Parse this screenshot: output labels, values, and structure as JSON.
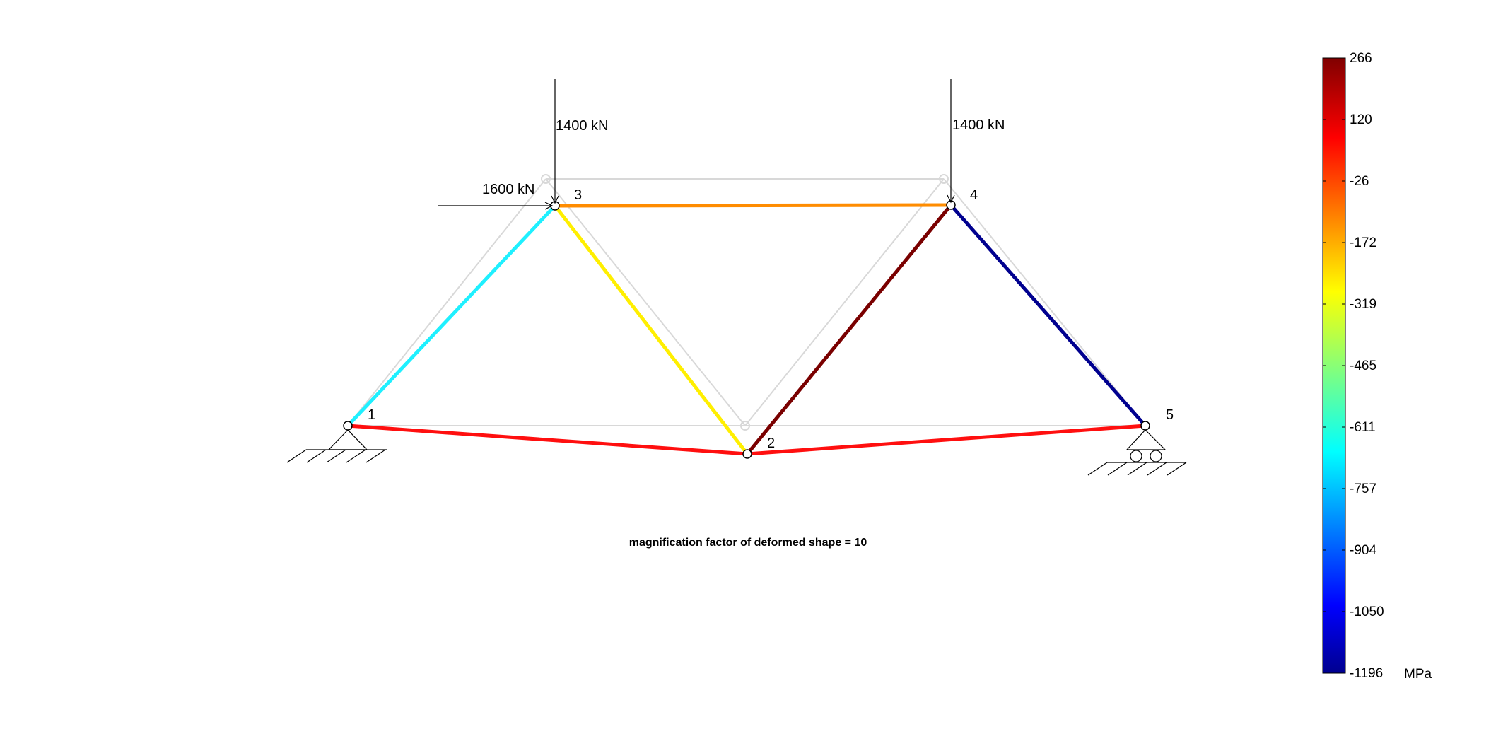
{
  "caption": "magnification factor of deformed shape = 10",
  "loads": [
    {
      "id": "load-3-vertical",
      "label": "1400 kN"
    },
    {
      "id": "load-4-vertical",
      "label": "1400 kN"
    },
    {
      "id": "load-3-horizontal",
      "label": "1600 kN"
    }
  ],
  "nodes": [
    {
      "label": "1",
      "support": "pin"
    },
    {
      "label": "2"
    },
    {
      "label": "3"
    },
    {
      "label": "4"
    },
    {
      "label": "5",
      "support": "roller"
    }
  ],
  "members": [
    {
      "from": "1",
      "to": "2",
      "color": "#ff0f0f"
    },
    {
      "from": "2",
      "to": "5",
      "color": "#ff0f0f"
    },
    {
      "from": "1",
      "to": "3",
      "color": "#1ff0ff"
    },
    {
      "from": "3",
      "to": "2",
      "color": "#ffef00"
    },
    {
      "from": "3",
      "to": "4",
      "color": "#ff8c00"
    },
    {
      "from": "2",
      "to": "4",
      "color": "#7a0000"
    },
    {
      "from": "4",
      "to": "5",
      "color": "#00008f"
    }
  ],
  "colorbar": {
    "unit": "MPa",
    "ticks": [
      "266",
      "120",
      "-26",
      "-172",
      "-319",
      "-465",
      "-611",
      "-757",
      "-904",
      "-1050",
      "-1196"
    ],
    "colormap": "jet"
  }
}
